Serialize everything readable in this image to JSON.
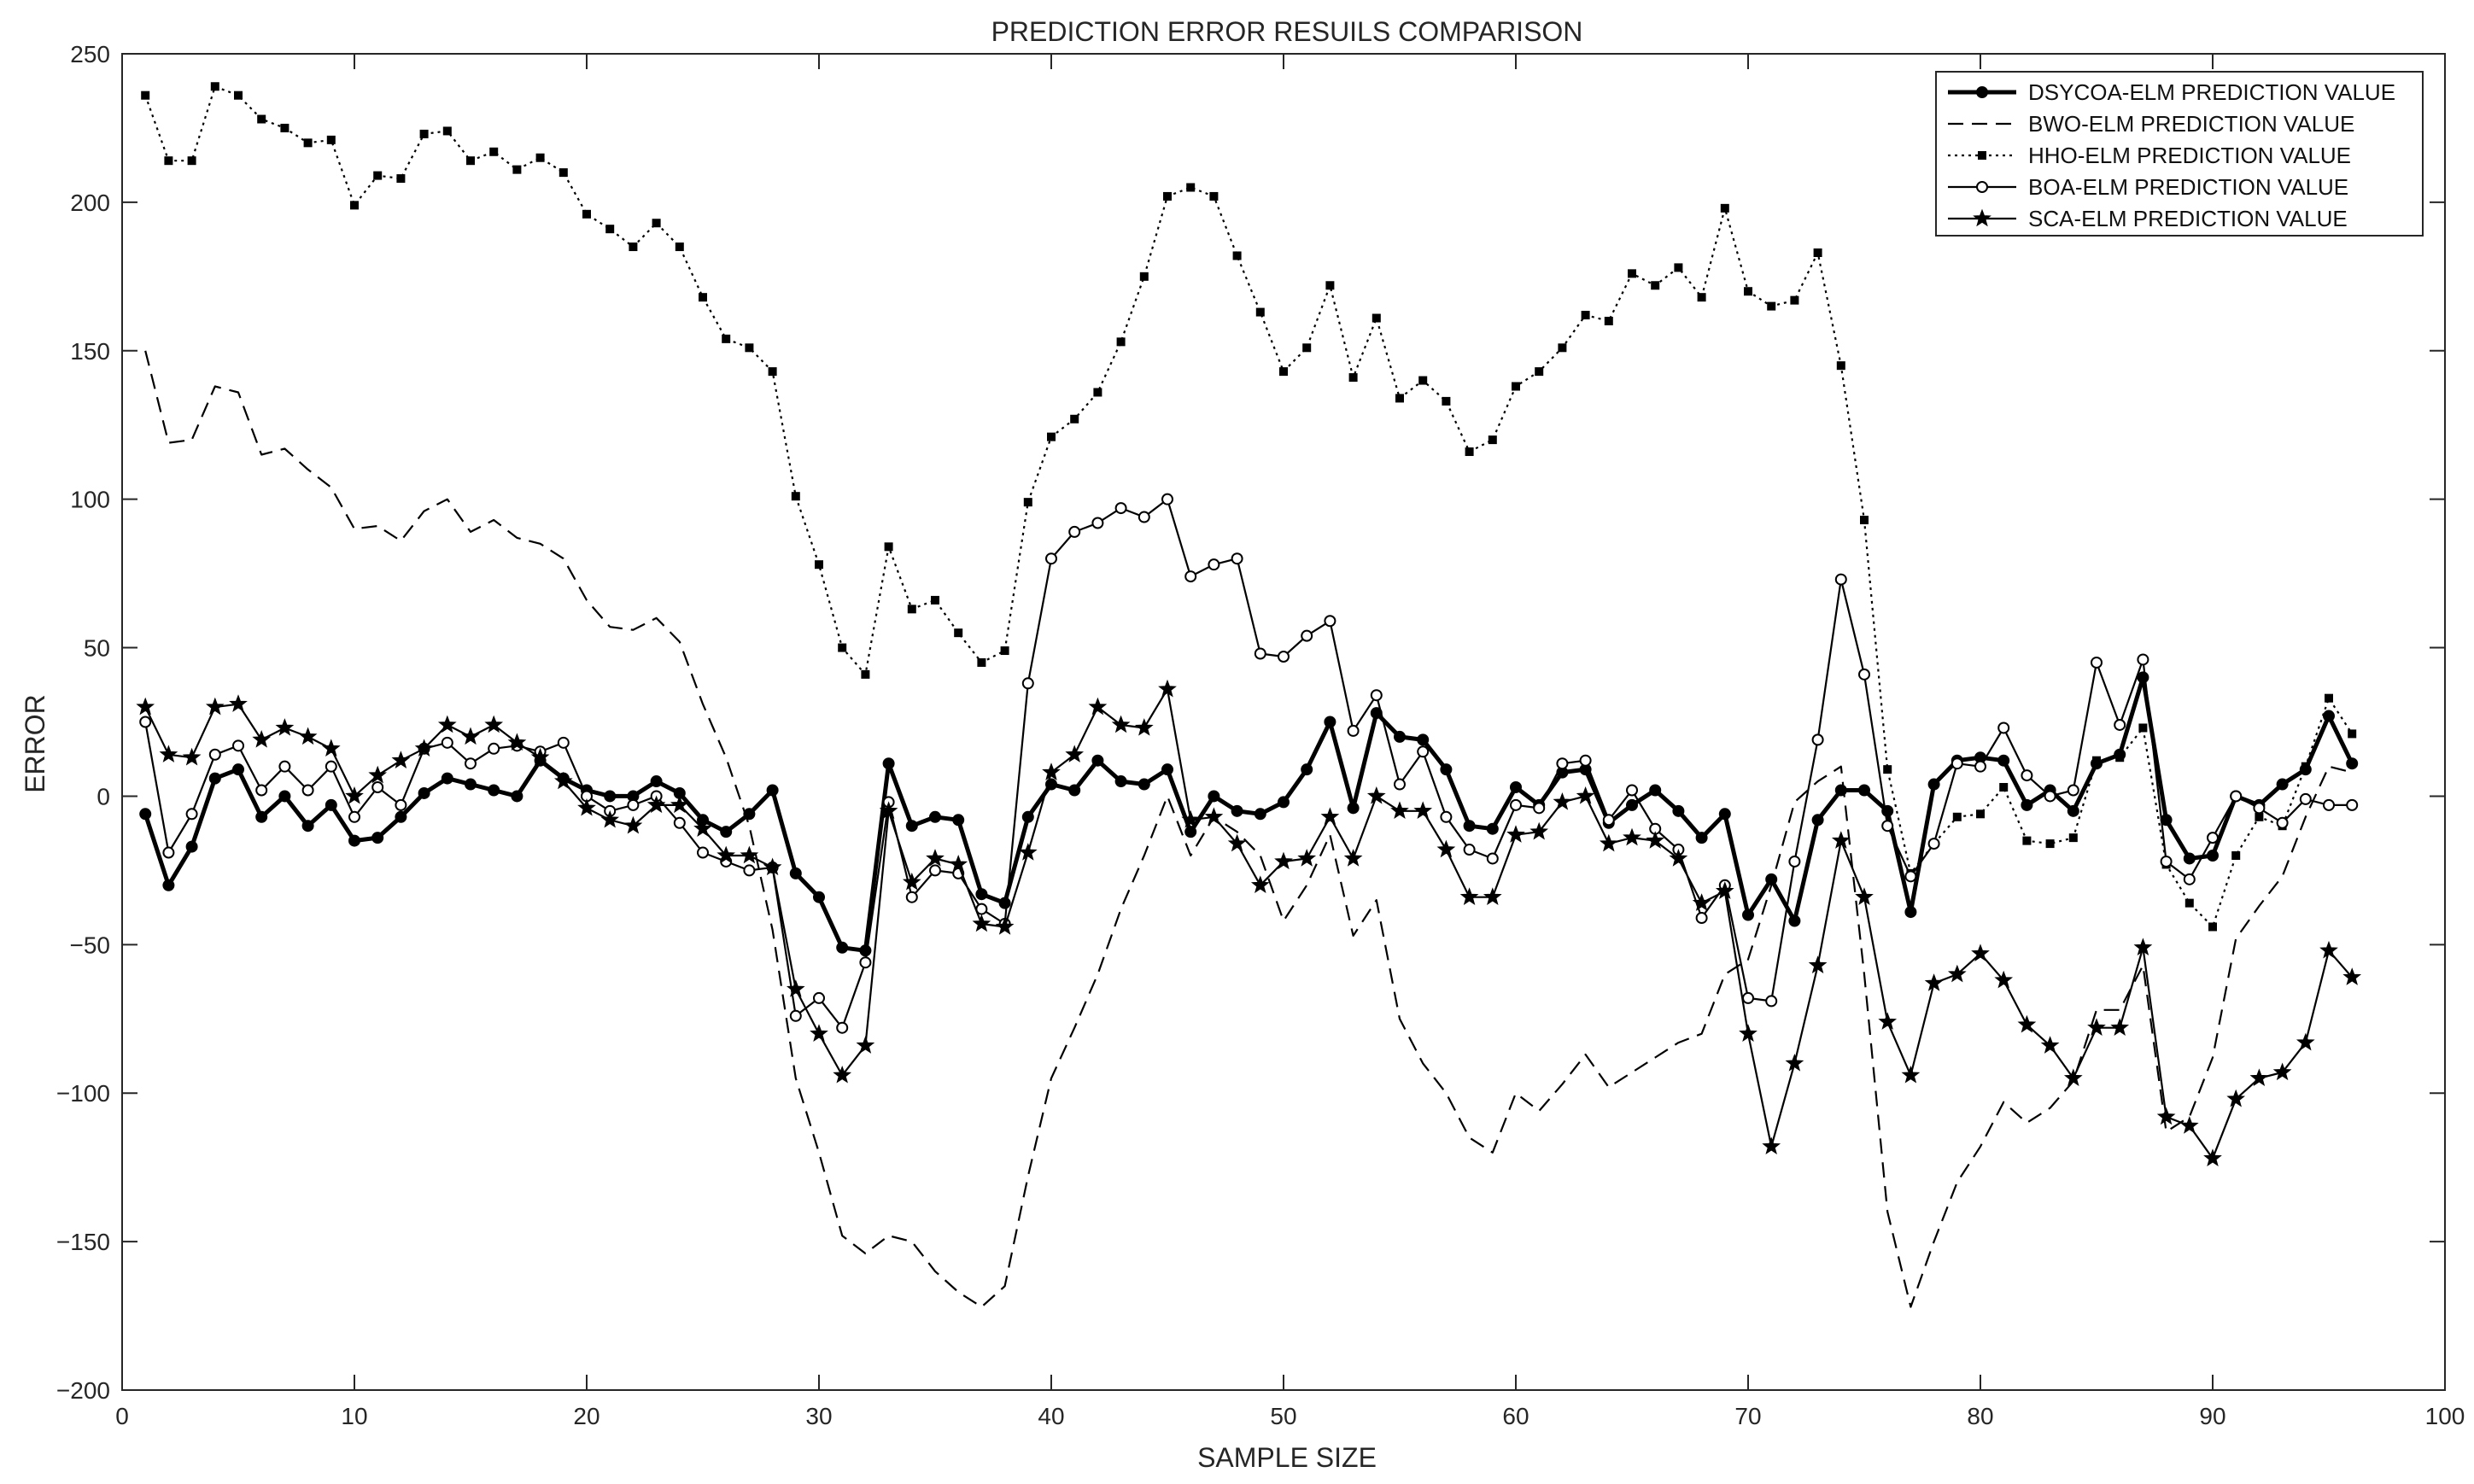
{
  "chart_data": {
    "type": "line",
    "title": "PREDICTION ERROR RESUILS COMPARISON",
    "xlabel": "SAMPLE SIZE",
    "ylabel": "ERROR",
    "xlim": [
      0,
      100
    ],
    "ylim": [
      -200,
      250
    ],
    "xticks": [
      0,
      10,
      20,
      30,
      40,
      50,
      60,
      70,
      80,
      90,
      100
    ],
    "yticks": [
      -200,
      -150,
      -100,
      -50,
      0,
      50,
      100,
      150,
      200,
      250
    ],
    "xtick_labels": [
      "0",
      "10",
      "20",
      "30",
      "40",
      "50",
      "60",
      "70",
      "80",
      "90",
      "100"
    ],
    "ytick_labels": [
      "−200",
      "−150",
      "−100",
      "−50",
      "0",
      "50",
      "100",
      "150",
      "200",
      "250"
    ],
    "grid": false,
    "legend_position": "top-right",
    "series": [
      {
        "name": "DSYCOA-ELM PREDICTION VALUE",
        "style": "solid-bold",
        "marker": "filled-circle",
        "color": "#000000",
        "values": [
          -6,
          -30,
          -17,
          6,
          9,
          -7,
          0,
          -10,
          -3,
          -15,
          -14,
          -7,
          1,
          6,
          4,
          2,
          0,
          12,
          6,
          2,
          0,
          0,
          5,
          1,
          -8,
          -12,
          -6,
          2,
          -26,
          -34,
          -51,
          -52,
          11,
          -10,
          -7,
          -8,
          -33,
          -36,
          -7,
          4,
          2,
          12,
          5,
          4,
          9,
          -12,
          0,
          -5,
          -6,
          -2,
          9,
          25,
          -4,
          28,
          20,
          19,
          9,
          -10,
          -11,
          3,
          -3,
          8,
          9,
          -9,
          -3,
          2,
          -5,
          -14,
          -6,
          -40,
          -28,
          -42,
          -8,
          2,
          2,
          -5,
          -39,
          4,
          12,
          13,
          12,
          -3,
          2,
          -5,
          11,
          14,
          40,
          -8,
          -21,
          -20,
          0,
          -3,
          4,
          9,
          27,
          11
        ]
      },
      {
        "name": "BWO-ELM PREDICTION VALUE",
        "style": "dashed",
        "marker": "none",
        "color": "#000000",
        "values": [
          150,
          119,
          120,
          138,
          136,
          115,
          117,
          110,
          104,
          90,
          91,
          86,
          96,
          100,
          89,
          93,
          87,
          85,
          80,
          66,
          57,
          56,
          60,
          52,
          31,
          13,
          -10,
          -45,
          -95,
          -120,
          -148,
          -154,
          -148,
          -150,
          -160,
          -167,
          -172,
          -165,
          -128,
          -95,
          -78,
          -60,
          -38,
          -20,
          0,
          -20,
          -7,
          -12,
          -20,
          -42,
          -30,
          -13,
          -47,
          -35,
          -75,
          -90,
          -100,
          -115,
          -120,
          -100,
          -106,
          -97,
          -87,
          -98,
          -93,
          -88,
          -83,
          -80,
          -60,
          -55,
          -30,
          -2,
          5,
          10,
          -60,
          -140,
          -172,
          -150,
          -130,
          -118,
          -103,
          -110,
          -105,
          -96,
          -72,
          -72,
          -57,
          -113,
          -108,
          -88,
          -48,
          -37,
          -27,
          -7,
          10,
          8
        ]
      },
      {
        "name": "HHO-ELM PREDICTION VALUE",
        "style": "dotted",
        "marker": "filled-square",
        "color": "#000000",
        "values": [
          236,
          214,
          214,
          239,
          236,
          228,
          225,
          220,
          221,
          199,
          209,
          208,
          223,
          224,
          214,
          217,
          211,
          215,
          210,
          196,
          191,
          185,
          193,
          185,
          168,
          154,
          151,
          143,
          101,
          78,
          50,
          41,
          84,
          63,
          66,
          55,
          45,
          49,
          99,
          121,
          127,
          136,
          153,
          175,
          202,
          205,
          202,
          182,
          163,
          143,
          151,
          172,
          141,
          161,
          134,
          140,
          133,
          116,
          120,
          138,
          143,
          151,
          162,
          160,
          176,
          172,
          178,
          168,
          198,
          170,
          165,
          167,
          183,
          145,
          93,
          9,
          -26,
          -16,
          -7,
          -6,
          3,
          -15,
          -16,
          -14,
          12,
          13,
          23,
          -23,
          -36,
          -44,
          -20,
          -7,
          -10,
          10,
          33,
          21
        ]
      },
      {
        "name": "BOA-ELM PREDICTION VALUE",
        "style": "solid",
        "marker": "open-circle",
        "color": "#000000",
        "values": [
          25,
          -19,
          -6,
          14,
          17,
          2,
          10,
          2,
          10,
          -7,
          3,
          -3,
          16,
          18,
          11,
          16,
          17,
          15,
          18,
          0,
          -5,
          -3,
          0,
          -9,
          -19,
          -22,
          -25,
          -24,
          -74,
          -68,
          -78,
          -56,
          -2,
          -34,
          -25,
          -26,
          -38,
          -43,
          38,
          80,
          89,
          92,
          97,
          94,
          100,
          74,
          78,
          80,
          48,
          47,
          54,
          59,
          22,
          34,
          4,
          15,
          -7,
          -18,
          -21,
          -3,
          -4,
          11,
          12,
          -8,
          2,
          -11,
          -18,
          -41,
          -30,
          -68,
          -69,
          -22,
          19,
          73,
          41,
          -10,
          -27,
          -16,
          11,
          10,
          23,
          7,
          0,
          2,
          45,
          24,
          46,
          -22,
          -28,
          -14,
          0,
          -4,
          -9,
          -1,
          -3,
          -3
        ]
      },
      {
        "name": "SCA-ELM PREDICTION VALUE",
        "style": "solid",
        "marker": "star",
        "color": "#000000",
        "values": [
          30,
          14,
          13,
          30,
          31,
          19,
          23,
          20,
          16,
          0,
          7,
          12,
          16,
          24,
          20,
          24,
          18,
          13,
          5,
          -4,
          -8,
          -10,
          -3,
          -3,
          -11,
          -20,
          -20,
          -24,
          -65,
          -80,
          -94,
          -84,
          -5,
          -29,
          -21,
          -23,
          -43,
          -44,
          -19,
          8,
          14,
          30,
          24,
          23,
          36,
          -8,
          -7,
          -16,
          -30,
          -22,
          -21,
          -7,
          -21,
          0,
          -5,
          -5,
          -18,
          -34,
          -34,
          -13,
          -12,
          -2,
          0,
          -16,
          -14,
          -15,
          -21,
          -36,
          -32,
          -80,
          -118,
          -90,
          -57,
          -15,
          -34,
          -76,
          -94,
          -63,
          -60,
          -53,
          -62,
          -77,
          -84,
          -95,
          -78,
          -78,
          -51,
          -108,
          -111,
          -122,
          -102,
          -95,
          -93,
          -83,
          -52,
          -61
        ]
      }
    ]
  }
}
